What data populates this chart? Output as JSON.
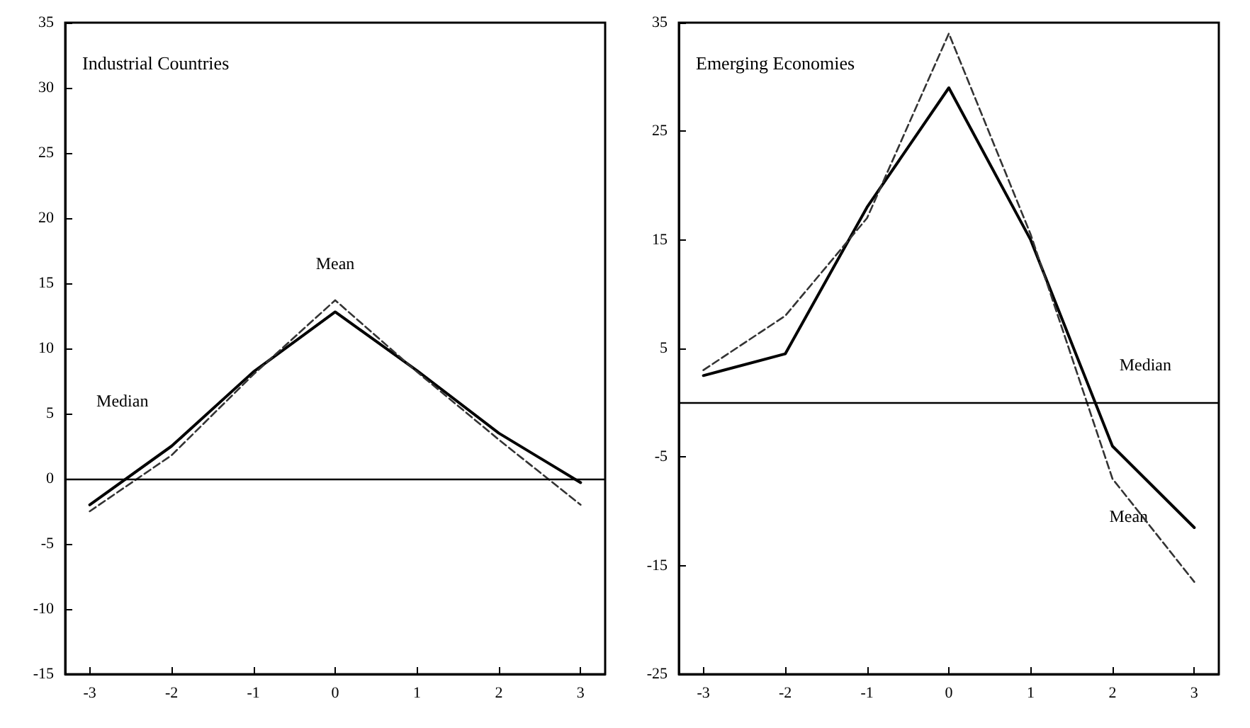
{
  "chart_data": [
    {
      "type": "line",
      "title": "Industrial Countries",
      "x": [
        -3,
        -2,
        -1,
        0,
        1,
        2,
        3
      ],
      "xlim": [
        -3.3,
        3.3
      ],
      "xticks": [
        -3,
        -2,
        -1,
        0,
        1,
        2,
        3
      ],
      "ylim": [
        -15,
        35
      ],
      "yticks": [
        -15,
        -10,
        -5,
        0,
        5,
        10,
        15,
        20,
        25,
        30,
        35
      ],
      "grid": false,
      "marker": "none",
      "series": [
        {
          "color": "#000000",
          "line_style": "solid",
          "values": [
            -2,
            2.5,
            8.2,
            12.8,
            8.3,
            3.5,
            -0.3
          ]
        },
        {
          "color": "#333333",
          "line_style": "dashed",
          "values": [
            -2.5,
            1.8,
            8,
            13.7,
            8.2,
            3,
            -2
          ]
        }
      ],
      "ref_lines": [
        {
          "axis": "y",
          "value": 0,
          "color": "#000000"
        }
      ],
      "annotations": [
        "Median",
        "Mean"
      ]
    },
    {
      "type": "line",
      "title": "Emerging Economies",
      "x": [
        -3,
        -2,
        -1,
        0,
        1,
        2,
        3
      ],
      "xlim": [
        -3.3,
        3.3
      ],
      "xticks": [
        -3,
        -2,
        -1,
        0,
        1,
        2,
        3
      ],
      "ylim": [
        -25,
        35
      ],
      "yticks": [
        -25,
        -15,
        -5,
        5,
        15,
        25,
        35
      ],
      "grid": false,
      "marker": "none",
      "series": [
        {
          "color": "#000000",
          "line_style": "solid",
          "values": [
            2.5,
            4.5,
            18,
            29,
            15,
            -4,
            -11.5
          ]
        },
        {
          "color": "#333333",
          "line_style": "dashed",
          "values": [
            3,
            8,
            17,
            34,
            15.5,
            -7,
            -16.5
          ]
        }
      ],
      "ref_lines": [
        {
          "axis": "y",
          "value": 0,
          "color": "#000000"
        }
      ],
      "annotations": [
        "Median",
        "Mean"
      ]
    }
  ]
}
